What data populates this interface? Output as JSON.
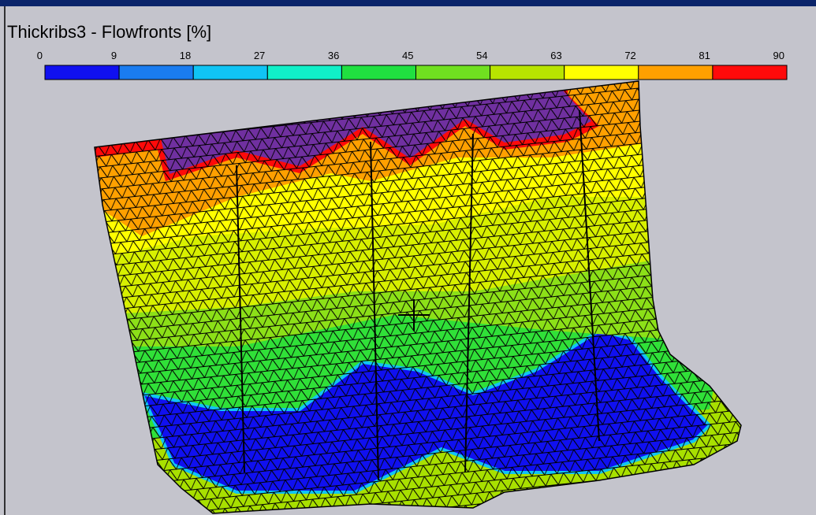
{
  "window": {
    "title": "Thickribs3 - Flowfronts [%]"
  },
  "color_scale": {
    "ticks": [
      0,
      9,
      18,
      27,
      36,
      45,
      54,
      63,
      72,
      81,
      90
    ],
    "colors": [
      "#1010f0",
      "#1a7cf0",
      "#10c4f4",
      "#10f0c8",
      "#20e040",
      "#70e020",
      "#b8e400",
      "#ffff00",
      "#ffa000",
      "#ff0a0a"
    ]
  }
}
